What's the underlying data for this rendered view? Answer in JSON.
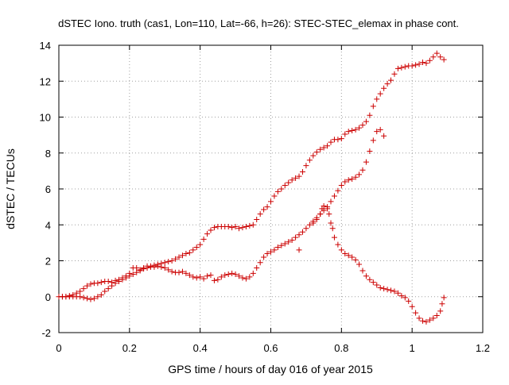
{
  "chart_data": {
    "type": "scatter",
    "title": "dSTEC Iono. truth (cas1, Lon=110, Lat=-66, h=26): STEC-STEC_elemax in phase cont.",
    "xlabel": "GPS time / hours of day 016 of year 2015",
    "ylabel": "dSTEC  / TECUs",
    "xlim": [
      0,
      1.2
    ],
    "ylim": [
      -2,
      14
    ],
    "xticks": [
      0,
      0.2,
      0.4,
      0.6,
      0.8,
      1,
      1.2
    ],
    "xtick_labels": [
      "0",
      "0.2",
      "0.4",
      "0.6",
      "0.8",
      "1",
      "1.2"
    ],
    "yticks": [
      -2,
      0,
      2,
      4,
      6,
      8,
      10,
      12,
      14
    ],
    "ytick_labels": [
      "-2",
      "0",
      "2",
      "4",
      "6",
      "8",
      "10",
      "12",
      "14"
    ],
    "grid": true,
    "marker": "plus",
    "color": "#cc0000",
    "series": [
      {
        "points": [
          [
            0.01,
            0.0
          ],
          [
            0.02,
            0.0
          ],
          [
            0.03,
            0.05
          ],
          [
            0.04,
            0.1
          ],
          [
            0.05,
            0.2
          ],
          [
            0.06,
            0.3
          ],
          [
            0.07,
            0.45
          ],
          [
            0.08,
            0.6
          ],
          [
            0.09,
            0.7
          ],
          [
            0.1,
            0.75
          ],
          [
            0.11,
            0.75
          ],
          [
            0.12,
            0.8
          ],
          [
            0.13,
            0.85
          ],
          [
            0.14,
            0.85
          ],
          [
            0.15,
            0.8
          ],
          [
            0.16,
            0.9
          ],
          [
            0.17,
            0.95
          ],
          [
            0.18,
            1.05
          ],
          [
            0.19,
            1.15
          ],
          [
            0.2,
            1.3
          ],
          [
            0.21,
            1.6
          ],
          [
            0.22,
            1.6
          ],
          [
            0.23,
            1.5
          ],
          [
            0.24,
            1.6
          ],
          [
            0.25,
            1.7
          ],
          [
            0.26,
            1.7
          ],
          [
            0.27,
            1.75
          ],
          [
            0.28,
            1.8
          ],
          [
            0.29,
            1.85
          ],
          [
            0.3,
            1.9
          ],
          [
            0.31,
            1.95
          ],
          [
            0.32,
            2.0
          ],
          [
            0.33,
            2.1
          ],
          [
            0.34,
            2.2
          ],
          [
            0.35,
            2.3
          ],
          [
            0.36,
            2.4
          ],
          [
            0.37,
            2.45
          ],
          [
            0.38,
            2.6
          ],
          [
            0.39,
            2.75
          ],
          [
            0.4,
            2.9
          ],
          [
            0.41,
            3.2
          ],
          [
            0.42,
            3.5
          ],
          [
            0.43,
            3.7
          ],
          [
            0.44,
            3.85
          ],
          [
            0.45,
            3.9
          ],
          [
            0.46,
            3.9
          ],
          [
            0.47,
            3.9
          ],
          [
            0.48,
            3.9
          ],
          [
            0.49,
            3.85
          ],
          [
            0.5,
            3.9
          ],
          [
            0.51,
            3.8
          ],
          [
            0.52,
            3.85
          ],
          [
            0.53,
            3.9
          ],
          [
            0.54,
            3.95
          ],
          [
            0.55,
            4.0
          ],
          [
            0.56,
            4.3
          ],
          [
            0.57,
            4.6
          ],
          [
            0.58,
            4.85
          ],
          [
            0.59,
            5.0
          ],
          [
            0.6,
            5.3
          ],
          [
            0.61,
            5.6
          ],
          [
            0.62,
            5.85
          ],
          [
            0.63,
            6.0
          ],
          [
            0.64,
            6.2
          ],
          [
            0.65,
            6.35
          ],
          [
            0.66,
            6.5
          ],
          [
            0.67,
            6.6
          ],
          [
            0.68,
            6.7
          ],
          [
            0.69,
            6.95
          ],
          [
            0.7,
            7.3
          ],
          [
            0.71,
            7.6
          ],
          [
            0.72,
            7.85
          ],
          [
            0.73,
            8.05
          ],
          [
            0.74,
            8.2
          ],
          [
            0.75,
            8.3
          ],
          [
            0.76,
            8.4
          ],
          [
            0.77,
            8.6
          ],
          [
            0.78,
            8.75
          ],
          [
            0.79,
            8.75
          ],
          [
            0.8,
            8.8
          ],
          [
            0.81,
            9.05
          ],
          [
            0.82,
            9.2
          ],
          [
            0.83,
            9.25
          ],
          [
            0.84,
            9.3
          ],
          [
            0.85,
            9.4
          ],
          [
            0.86,
            9.55
          ],
          [
            0.87,
            9.75
          ],
          [
            0.88,
            10.1
          ],
          [
            0.89,
            10.6
          ],
          [
            0.9,
            11.0
          ],
          [
            0.91,
            11.3
          ],
          [
            0.92,
            11.6
          ],
          [
            0.93,
            11.85
          ],
          [
            0.94,
            12.05
          ],
          [
            0.95,
            12.4
          ],
          [
            0.96,
            12.7
          ],
          [
            0.97,
            12.75
          ],
          [
            0.98,
            12.8
          ],
          [
            0.99,
            12.85
          ],
          [
            1.0,
            12.85
          ],
          [
            1.01,
            12.9
          ],
          [
            1.02,
            12.95
          ],
          [
            1.03,
            13.05
          ],
          [
            1.04,
            13.0
          ],
          [
            1.05,
            13.15
          ],
          [
            1.06,
            13.35
          ],
          [
            1.07,
            13.55
          ],
          [
            1.08,
            13.35
          ],
          [
            1.09,
            13.2
          ]
        ]
      },
      {
        "points": [
          [
            0.0,
            0.0
          ],
          [
            0.01,
            0.0
          ],
          [
            0.02,
            0.0
          ],
          [
            0.03,
            0.0
          ],
          [
            0.04,
            0.0
          ],
          [
            0.05,
            0.0
          ],
          [
            0.06,
            0.0
          ],
          [
            0.07,
            -0.05
          ],
          [
            0.08,
            -0.1
          ],
          [
            0.09,
            -0.15
          ],
          [
            0.1,
            -0.1
          ],
          [
            0.11,
            0.0
          ],
          [
            0.12,
            0.1
          ],
          [
            0.13,
            0.3
          ],
          [
            0.14,
            0.45
          ],
          [
            0.15,
            0.6
          ],
          [
            0.16,
            0.75
          ],
          [
            0.17,
            0.85
          ],
          [
            0.18,
            0.95
          ],
          [
            0.19,
            1.05
          ],
          [
            0.2,
            1.15
          ],
          [
            0.21,
            1.25
          ],
          [
            0.22,
            1.35
          ],
          [
            0.23,
            1.45
          ],
          [
            0.24,
            1.55
          ],
          [
            0.25,
            1.6
          ],
          [
            0.26,
            1.65
          ],
          [
            0.27,
            1.65
          ],
          [
            0.28,
            1.7
          ],
          [
            0.29,
            1.65
          ],
          [
            0.3,
            1.6
          ],
          [
            0.31,
            1.5
          ],
          [
            0.32,
            1.4
          ],
          [
            0.33,
            1.35
          ],
          [
            0.34,
            1.35
          ],
          [
            0.35,
            1.4
          ],
          [
            0.36,
            1.3
          ],
          [
            0.37,
            1.2
          ],
          [
            0.38,
            1.1
          ],
          [
            0.39,
            1.05
          ],
          [
            0.4,
            1.1
          ],
          [
            0.41,
            1.0
          ],
          [
            0.42,
            1.15
          ],
          [
            0.43,
            1.2
          ],
          [
            0.44,
            0.9
          ],
          [
            0.45,
            0.95
          ],
          [
            0.46,
            1.1
          ],
          [
            0.47,
            1.2
          ],
          [
            0.48,
            1.25
          ],
          [
            0.49,
            1.3
          ],
          [
            0.5,
            1.25
          ],
          [
            0.51,
            1.15
          ],
          [
            0.52,
            1.05
          ],
          [
            0.53,
            1.0
          ],
          [
            0.54,
            1.1
          ],
          [
            0.55,
            1.3
          ],
          [
            0.56,
            1.6
          ],
          [
            0.57,
            1.9
          ],
          [
            0.58,
            2.2
          ],
          [
            0.59,
            2.4
          ],
          [
            0.6,
            2.5
          ],
          [
            0.61,
            2.6
          ],
          [
            0.62,
            2.75
          ],
          [
            0.63,
            2.85
          ],
          [
            0.64,
            2.95
          ],
          [
            0.65,
            3.05
          ],
          [
            0.66,
            3.15
          ],
          [
            0.67,
            3.3
          ],
          [
            0.68,
            2.6
          ],
          [
            0.68,
            3.45
          ],
          [
            0.69,
            3.6
          ],
          [
            0.7,
            3.8
          ],
          [
            0.71,
            4.0
          ],
          [
            0.72,
            4.2
          ],
          [
            0.73,
            4.4
          ],
          [
            0.74,
            4.6
          ],
          [
            0.75,
            4.8
          ],
          [
            0.76,
            5.0
          ],
          [
            0.77,
            5.3
          ],
          [
            0.78,
            5.6
          ],
          [
            0.79,
            5.9
          ],
          [
            0.8,
            6.2
          ],
          [
            0.81,
            6.4
          ],
          [
            0.82,
            6.5
          ],
          [
            0.83,
            6.55
          ],
          [
            0.84,
            6.65
          ],
          [
            0.85,
            6.8
          ],
          [
            0.86,
            7.05
          ],
          [
            0.87,
            7.5
          ],
          [
            0.88,
            8.1
          ],
          [
            0.89,
            8.7
          ],
          [
            0.9,
            9.2
          ],
          [
            0.91,
            9.3
          ],
          [
            0.92,
            8.95
          ]
        ]
      },
      {
        "points": [
          [
            0.72,
            4.1
          ],
          [
            0.73,
            4.3
          ],
          [
            0.74,
            4.6
          ],
          [
            0.745,
            4.9
          ],
          [
            0.75,
            5.05
          ],
          [
            0.76,
            4.9
          ],
          [
            0.765,
            4.6
          ],
          [
            0.77,
            4.1
          ],
          [
            0.775,
            3.8
          ],
          [
            0.78,
            3.3
          ],
          [
            0.79,
            2.9
          ],
          [
            0.8,
            2.6
          ],
          [
            0.81,
            2.4
          ],
          [
            0.82,
            2.3
          ],
          [
            0.83,
            2.2
          ],
          [
            0.84,
            2.05
          ],
          [
            0.85,
            1.8
          ],
          [
            0.86,
            1.45
          ],
          [
            0.87,
            1.15
          ],
          [
            0.88,
            0.95
          ],
          [
            0.89,
            0.8
          ],
          [
            0.9,
            0.65
          ],
          [
            0.91,
            0.5
          ],
          [
            0.92,
            0.45
          ],
          [
            0.93,
            0.4
          ],
          [
            0.94,
            0.35
          ],
          [
            0.95,
            0.3
          ],
          [
            0.96,
            0.2
          ],
          [
            0.97,
            0.05
          ],
          [
            0.98,
            -0.05
          ],
          [
            0.99,
            -0.25
          ],
          [
            1.0,
            -0.55
          ],
          [
            1.01,
            -0.9
          ],
          [
            1.02,
            -1.2
          ],
          [
            1.03,
            -1.35
          ],
          [
            1.04,
            -1.4
          ],
          [
            1.05,
            -1.3
          ],
          [
            1.06,
            -1.2
          ],
          [
            1.07,
            -1.05
          ],
          [
            1.08,
            -0.8
          ],
          [
            1.085,
            -0.4
          ],
          [
            1.09,
            -0.05
          ]
        ]
      }
    ]
  }
}
